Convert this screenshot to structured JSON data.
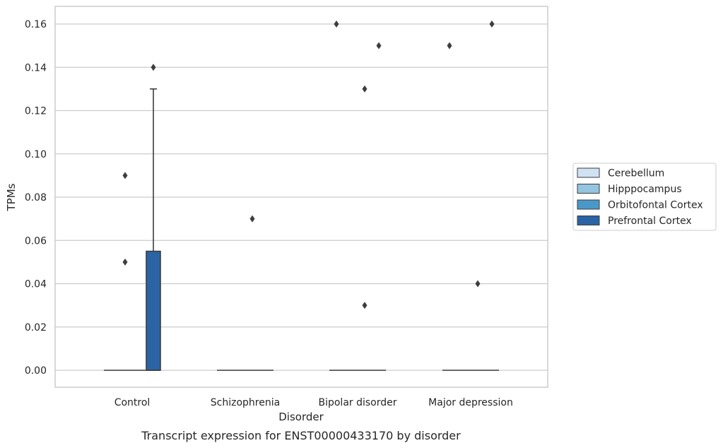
{
  "chart_data": {
    "type": "box",
    "xlabel": "Disorder",
    "ylabel": "TPMs",
    "caption": "Transcript expression for ENST00000433170 by disorder",
    "categories": [
      "Control",
      "Schizophrenia",
      "Bipolar disorder",
      "Major depression"
    ],
    "ylim": [
      -0.008,
      0.168
    ],
    "yticks": [
      0.0,
      0.02,
      0.04,
      0.06,
      0.08,
      0.1,
      0.12,
      0.14,
      0.16
    ],
    "ytick_labels": [
      "0.00",
      "0.02",
      "0.04",
      "0.06",
      "0.08",
      "0.10",
      "0.12",
      "0.14",
      "0.16"
    ],
    "grid": true,
    "legend_position": "right",
    "series": [
      {
        "name": "Cerebellum",
        "color": "#d0e1f2",
        "boxes": [
          {
            "category": "Control",
            "q1": 0,
            "median": 0,
            "q3": 0,
            "whisker_low": 0,
            "whisker_high": 0,
            "outliers": []
          },
          {
            "category": "Schizophrenia",
            "q1": 0,
            "median": 0,
            "q3": 0,
            "whisker_low": 0,
            "whisker_high": 0,
            "outliers": []
          },
          {
            "category": "Bipolar disorder",
            "q1": 0,
            "median": 0,
            "q3": 0,
            "whisker_low": 0,
            "whisker_high": 0,
            "outliers": [
              0.16
            ]
          },
          {
            "category": "Major depression",
            "q1": 0,
            "median": 0,
            "q3": 0,
            "whisker_low": 0,
            "whisker_high": 0,
            "outliers": [
              0.15
            ]
          }
        ]
      },
      {
        "name": "Hipppocampus",
        "color": "#94c4df",
        "boxes": [
          {
            "category": "Control",
            "q1": 0,
            "median": 0,
            "q3": 0,
            "whisker_low": 0,
            "whisker_high": 0,
            "outliers": [
              0.09,
              0.05
            ]
          },
          {
            "category": "Schizophrenia",
            "q1": 0,
            "median": 0,
            "q3": 0,
            "whisker_low": 0,
            "whisker_high": 0,
            "outliers": []
          },
          {
            "category": "Bipolar disorder",
            "q1": 0,
            "median": 0,
            "q3": 0,
            "whisker_low": 0,
            "whisker_high": 0,
            "outliers": []
          },
          {
            "category": "Major depression",
            "q1": 0,
            "median": 0,
            "q3": 0,
            "whisker_low": 0,
            "whisker_high": 0,
            "outliers": []
          }
        ]
      },
      {
        "name": "Orbitofontal Cortex",
        "color": "#4a98c9",
        "boxes": [
          {
            "category": "Control",
            "q1": 0,
            "median": 0,
            "q3": 0,
            "whisker_low": 0,
            "whisker_high": 0,
            "outliers": []
          },
          {
            "category": "Schizophrenia",
            "q1": 0,
            "median": 0,
            "q3": 0,
            "whisker_low": 0,
            "whisker_high": 0,
            "outliers": [
              0.07
            ]
          },
          {
            "category": "Bipolar disorder",
            "q1": 0,
            "median": 0,
            "q3": 0,
            "whisker_low": 0,
            "whisker_high": 0,
            "outliers": [
              0.13,
              0.03
            ]
          },
          {
            "category": "Major depression",
            "q1": 0,
            "median": 0,
            "q3": 0,
            "whisker_low": 0,
            "whisker_high": 0,
            "outliers": [
              0.04
            ]
          }
        ]
      },
      {
        "name": "Prefrontal Cortex",
        "color": "#2a64a4",
        "boxes": [
          {
            "category": "Control",
            "q1": 0,
            "median": 0,
            "q3": 0.055,
            "whisker_low": 0,
            "whisker_high": 0.13,
            "outliers": [
              0.14
            ]
          },
          {
            "category": "Schizophrenia",
            "q1": 0,
            "median": 0,
            "q3": 0,
            "whisker_low": 0,
            "whisker_high": 0,
            "outliers": []
          },
          {
            "category": "Bipolar disorder",
            "q1": 0,
            "median": 0,
            "q3": 0,
            "whisker_low": 0,
            "whisker_high": 0,
            "outliers": [
              0.15
            ]
          },
          {
            "category": "Major depression",
            "q1": 0,
            "median": 0,
            "q3": 0,
            "whisker_low": 0,
            "whisker_high": 0,
            "outliers": [
              0.16
            ]
          }
        ]
      }
    ]
  }
}
